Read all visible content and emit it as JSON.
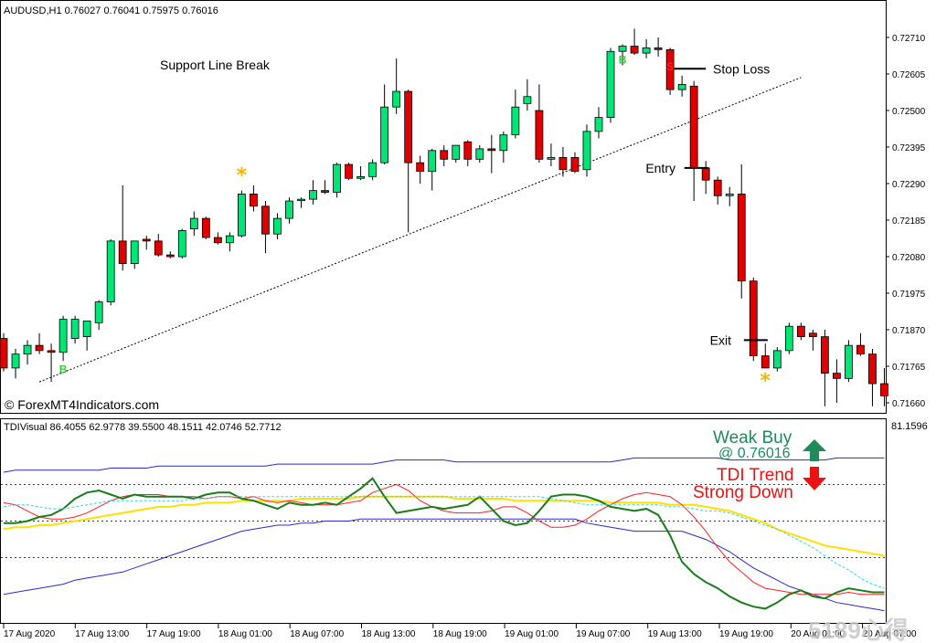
{
  "chart_data": [
    {
      "type": "candlestick",
      "header": "AUDUSD,H1  0.76027 0.76041 0.75975 0.76016",
      "ylim": [
        0.716,
        0.7277
      ],
      "y_ticks": [
        "0.72710",
        "0.72605",
        "0.72500",
        "0.72395",
        "0.72290",
        "0.72185",
        "0.72080",
        "0.71975",
        "0.71870",
        "0.71765",
        "0.71660"
      ],
      "x_ticks": [
        "17 Aug 2020",
        "17 Aug 13:00",
        "17 Aug 19:00",
        "18 Aug 01:00",
        "18 Aug 07:00",
        "18 Aug 13:00",
        "18 Aug 19:00",
        "19 Aug 01:00",
        "19 Aug 07:00",
        "19 Aug 13:00",
        "19 Aug 19:00",
        "20 Aug 01:00",
        "20 Aug 07:00"
      ],
      "candles": [
        [
          0.71845,
          0.7186,
          0.7175,
          0.7176
        ],
        [
          0.7176,
          0.71815,
          0.7173,
          0.718
        ],
        [
          0.718,
          0.7184,
          0.7177,
          0.71825
        ],
        [
          0.71825,
          0.7186,
          0.718,
          0.7181
        ],
        [
          0.7181,
          0.7183,
          0.7172,
          0.71805
        ],
        [
          0.71805,
          0.7191,
          0.7178,
          0.719
        ],
        [
          0.71845,
          0.7191,
          0.7183,
          0.719
        ],
        [
          0.7185,
          0.7189,
          0.7181,
          0.71895
        ],
        [
          0.7189,
          0.71955,
          0.7187,
          0.7195
        ],
        [
          0.7195,
          0.7213,
          0.7194,
          0.72125
        ],
        [
          0.72125,
          0.72285,
          0.7204,
          0.7206
        ],
        [
          0.7206,
          0.72125,
          0.72045,
          0.72125
        ],
        [
          0.7213,
          0.7214,
          0.721,
          0.72125
        ],
        [
          0.72125,
          0.72145,
          0.7208,
          0.72085
        ],
        [
          0.72085,
          0.72095,
          0.72075,
          0.7208
        ],
        [
          0.7208,
          0.7216,
          0.72075,
          0.72155
        ],
        [
          0.7216,
          0.7221,
          0.7214,
          0.7219
        ],
        [
          0.7219,
          0.72195,
          0.7213,
          0.72135
        ],
        [
          0.72135,
          0.7215,
          0.72115,
          0.7212
        ],
        [
          0.7212,
          0.7215,
          0.72095,
          0.7214
        ],
        [
          0.7214,
          0.7227,
          0.72135,
          0.7226
        ],
        [
          0.7226,
          0.72285,
          0.7221,
          0.72225
        ],
        [
          0.72225,
          0.7224,
          0.7209,
          0.72145
        ],
        [
          0.72145,
          0.72205,
          0.7213,
          0.7219
        ],
        [
          0.7219,
          0.7225,
          0.72175,
          0.7224
        ],
        [
          0.72245,
          0.7225,
          0.7222,
          0.72245
        ],
        [
          0.72245,
          0.723,
          0.7223,
          0.7227
        ],
        [
          0.7227,
          0.723,
          0.7226,
          0.72265
        ],
        [
          0.72265,
          0.7235,
          0.7225,
          0.72345
        ],
        [
          0.72345,
          0.7235,
          0.723,
          0.72305
        ],
        [
          0.72305,
          0.7234,
          0.723,
          0.7231
        ],
        [
          0.7231,
          0.7236,
          0.723,
          0.7235
        ],
        [
          0.7235,
          0.72575,
          0.72345,
          0.7251
        ],
        [
          0.7251,
          0.7265,
          0.7249,
          0.72555
        ],
        [
          0.72555,
          0.7256,
          0.7215,
          0.7235
        ],
        [
          0.7235,
          0.7237,
          0.7229,
          0.72325
        ],
        [
          0.72325,
          0.7239,
          0.7227,
          0.72385
        ],
        [
          0.72385,
          0.724,
          0.7234,
          0.7236
        ],
        [
          0.7236,
          0.724,
          0.7235,
          0.724
        ],
        [
          0.7241,
          0.72415,
          0.7234,
          0.7236
        ],
        [
          0.7236,
          0.724,
          0.7235,
          0.7239
        ],
        [
          0.7239,
          0.7243,
          0.7232,
          0.72385
        ],
        [
          0.72385,
          0.7244,
          0.7235,
          0.7243
        ],
        [
          0.7243,
          0.7256,
          0.7242,
          0.7251
        ],
        [
          0.7252,
          0.7259,
          0.725,
          0.7254
        ],
        [
          0.725,
          0.72575,
          0.7235,
          0.7236
        ],
        [
          0.7236,
          0.72405,
          0.7234,
          0.72365
        ],
        [
          0.72365,
          0.72395,
          0.7231,
          0.7233
        ],
        [
          0.72365,
          0.7238,
          0.7232,
          0.72325
        ],
        [
          0.7233,
          0.7246,
          0.7231,
          0.7244
        ],
        [
          0.7244,
          0.7251,
          0.7242,
          0.7248
        ],
        [
          0.7248,
          0.7268,
          0.72465,
          0.7267
        ],
        [
          0.7267,
          0.7269,
          0.7263,
          0.72685
        ],
        [
          0.72685,
          0.72735,
          0.7266,
          0.72665
        ],
        [
          0.72665,
          0.72705,
          0.7265,
          0.7268
        ],
        [
          0.7268,
          0.7271,
          0.72655,
          0.72675
        ],
        [
          0.72675,
          0.7268,
          0.72545,
          0.7256
        ],
        [
          0.7256,
          0.726,
          0.7254,
          0.72575
        ],
        [
          0.7257,
          0.72585,
          0.7224,
          0.72335
        ],
        [
          0.72335,
          0.72355,
          0.7226,
          0.723
        ],
        [
          0.723,
          0.7231,
          0.7223,
          0.72255
        ],
        [
          0.72255,
          0.7228,
          0.72225,
          0.7226
        ],
        [
          0.7226,
          0.72345,
          0.7196,
          0.7201
        ],
        [
          0.7201,
          0.7202,
          0.7178,
          0.71795
        ],
        [
          0.71795,
          0.7183,
          0.7176,
          0.7176
        ],
        [
          0.7176,
          0.7182,
          0.7175,
          0.7181
        ],
        [
          0.7181,
          0.7189,
          0.718,
          0.7188
        ],
        [
          0.7188,
          0.7189,
          0.7184,
          0.7185
        ],
        [
          0.7186,
          0.7187,
          0.7181,
          0.7185
        ],
        [
          0.7185,
          0.7187,
          0.7165,
          0.71745
        ],
        [
          0.71745,
          0.71785,
          0.7166,
          0.7173
        ],
        [
          0.7173,
          0.7184,
          0.7172,
          0.71825
        ],
        [
          0.71825,
          0.7186,
          0.71795,
          0.718
        ],
        [
          0.718,
          0.71815,
          0.7165,
          0.71715
        ],
        [
          0.71715,
          0.7176,
          0.7165,
          0.7168
        ]
      ],
      "markers": [
        {
          "text": "B",
          "index": 5,
          "price": 0.71745,
          "color": "#33cc33"
        },
        {
          "text": "B",
          "index": 52,
          "price": 0.72635,
          "color": "#33cc33"
        },
        {
          "text": "S",
          "index": 56,
          "price": 0.72615,
          "color": "#ff2020"
        }
      ],
      "stars": [
        {
          "index": 20,
          "price": 0.72295
        },
        {
          "index": 64,
          "price": 0.71705
        }
      ],
      "levels": [
        {
          "label": "Stop Loss",
          "price": 0.7262
        },
        {
          "label": "Entry",
          "price": 0.72335
        },
        {
          "label": "Exit",
          "price": 0.7184
        }
      ],
      "trendline": {
        "from": [
          3,
          0.7172
        ],
        "to": [
          67,
          0.72595
        ]
      },
      "annotation": "Support Line Break",
      "watermark": "© ForexMT4Indicators.com",
      "up_color": "#00e676",
      "down_color": "#e00000"
    },
    {
      "type": "line",
      "header": "TDIVisual 86.4055 62.9778 39.5500 48.1511 42.0746 52.7712",
      "right_label": "81.1596",
      "ylim": [
        0,
        100
      ],
      "levels": [
        68,
        50,
        32
      ],
      "series": [
        {
          "role": "upper band",
          "color": "#2a2ad0",
          "values": [
            74,
            75,
            75,
            75,
            75,
            75,
            75,
            75,
            75,
            76,
            76,
            76,
            76,
            77,
            77,
            77,
            77,
            77,
            77,
            77,
            77,
            77,
            77,
            78,
            78,
            78,
            78,
            78,
            78,
            78,
            78,
            78,
            79,
            80,
            80,
            80,
            80,
            80,
            79,
            79,
            79,
            79,
            79,
            79,
            79,
            79,
            79,
            79,
            79,
            79,
            79,
            79,
            80,
            81,
            81,
            81,
            81,
            81,
            81,
            81,
            81,
            80,
            80,
            80,
            80,
            80,
            80,
            80,
            80,
            80,
            81,
            81,
            81,
            81,
            81
          ]
        },
        {
          "role": "lower band",
          "color": "#2a2ad0",
          "values": [
            14,
            15,
            16,
            17,
            18,
            19,
            21,
            22,
            23,
            24,
            25,
            27,
            29,
            31,
            33,
            35,
            37,
            39,
            41,
            43,
            45,
            46,
            47,
            48,
            48,
            49,
            49,
            50,
            50,
            50,
            51,
            51,
            51,
            51,
            51,
            51,
            51,
            51,
            51,
            51,
            51,
            51,
            51,
            51,
            51,
            51,
            51,
            51,
            51,
            49,
            48,
            47,
            46,
            45,
            45,
            45,
            45,
            45,
            43,
            41,
            38,
            35,
            31,
            27,
            24,
            21,
            18,
            16,
            14,
            12,
            10,
            9,
            8,
            7,
            6
          ]
        },
        {
          "role": "market base line",
          "color": "#ffe000",
          "values": [
            46,
            47,
            47,
            48,
            48,
            49,
            50,
            51,
            52,
            53,
            54,
            55,
            56,
            57,
            57,
            58,
            58,
            59,
            59,
            59,
            60,
            60,
            60,
            60,
            60,
            61,
            61,
            61,
            61,
            61,
            62,
            62,
            62,
            62,
            62,
            62,
            62,
            62,
            61,
            61,
            61,
            61,
            61,
            60,
            60,
            60,
            60,
            60,
            60,
            60,
            60,
            59,
            59,
            59,
            59,
            59,
            58,
            58,
            58,
            57,
            56,
            55,
            53,
            51,
            49,
            46,
            44,
            42,
            40,
            38,
            37,
            36,
            35,
            34,
            33
          ]
        },
        {
          "role": "signal line",
          "color": "#ff2020",
          "values": [
            59,
            58,
            55,
            52,
            51,
            51,
            52,
            54,
            57,
            60,
            62,
            63,
            63,
            63,
            62,
            62,
            62,
            61,
            62,
            62,
            61,
            62,
            60,
            59,
            60,
            59,
            58,
            58,
            58,
            59,
            60,
            64,
            66,
            68,
            65,
            60,
            57,
            55,
            54,
            54,
            54,
            55,
            57,
            57,
            54,
            50,
            47,
            47,
            48,
            51,
            55,
            58,
            61,
            63,
            64,
            63,
            62,
            58,
            52,
            45,
            37,
            30,
            25,
            20,
            17,
            16,
            15,
            14,
            14,
            14,
            14,
            15,
            14,
            14,
            14
          ]
        },
        {
          "role": "price line",
          "color": "#1a7d1a",
          "values": [
            49,
            49,
            50,
            52,
            53,
            56,
            61,
            64,
            65,
            63,
            61,
            63,
            62,
            62,
            62,
            62,
            61,
            63,
            64,
            64,
            61,
            60,
            58,
            56,
            59,
            58,
            58,
            59,
            58,
            62,
            66,
            71,
            62,
            54,
            55,
            56,
            57,
            56,
            57,
            58,
            62,
            56,
            50,
            48,
            49,
            55,
            62,
            63,
            63,
            62,
            60,
            57,
            56,
            55,
            56,
            53,
            43,
            30,
            24,
            20,
            17,
            13,
            10,
            8,
            7,
            10,
            14,
            16,
            13,
            12,
            15,
            17,
            16,
            15,
            15
          ]
        },
        {
          "role": "fast line",
          "color": "#33d6e6",
          "values": [
            57,
            58,
            58,
            57,
            56,
            56,
            57,
            58,
            59,
            60,
            60,
            60,
            60,
            60,
            60,
            60,
            61,
            61,
            62,
            62,
            62,
            62,
            62,
            62,
            62,
            62,
            62,
            62,
            62,
            62,
            62,
            62,
            62,
            62,
            62,
            62,
            62,
            62,
            62,
            62,
            62,
            62,
            62,
            62,
            62,
            62,
            61,
            60,
            59,
            58,
            58,
            58,
            58,
            58,
            58,
            58,
            57,
            57,
            56,
            55,
            55,
            54,
            52,
            50,
            48,
            46,
            43,
            40,
            37,
            33,
            29,
            26,
            22,
            19,
            17
          ]
        }
      ],
      "arrow_up_label_1": "Weak Buy",
      "arrow_up_label_2": "@ 0.76016",
      "arrow_up_color": "#1f8a5a",
      "arrow_down_label_1": "TDI Trend",
      "arrow_down_label_2": "Strong Down",
      "arrow_down_color": "#ee1111"
    }
  ],
  "site_watermark": "5189心得"
}
